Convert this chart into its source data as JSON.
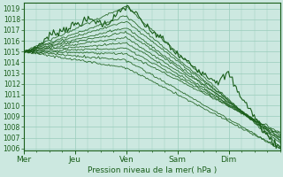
{
  "title": "Pression niveau de la mer( hPa )",
  "ylabel_ticks": [
    1006,
    1007,
    1008,
    1009,
    1010,
    1011,
    1012,
    1013,
    1014,
    1015,
    1016,
    1017,
    1018,
    1019
  ],
  "ylim": [
    1005.8,
    1019.5
  ],
  "xlim": [
    0,
    5.0
  ],
  "day_labels": [
    "Mer",
    "Jeu",
    "Ven",
    "Sam",
    "Dim"
  ],
  "day_ticks": [
    0,
    1,
    2,
    3,
    4
  ],
  "bg_color": "#cce8e0",
  "grid_color": "#99ccbb",
  "line_color": "#1a5e1a",
  "line_color2": "#2a7a2a"
}
